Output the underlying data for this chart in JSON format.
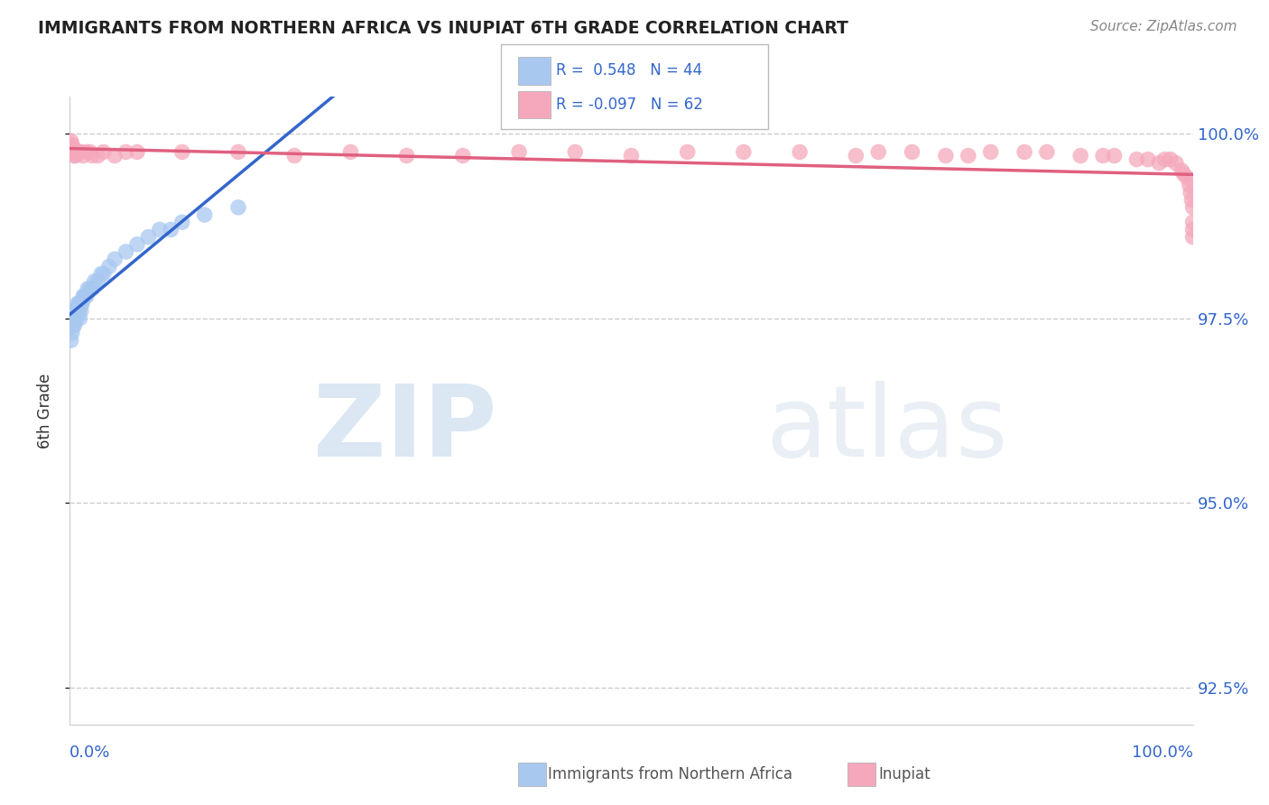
{
  "title": "IMMIGRANTS FROM NORTHERN AFRICA VS INUPIAT 6TH GRADE CORRELATION CHART",
  "source": "Source: ZipAtlas.com",
  "ylabel": "6th Grade",
  "legend_r_blue": "R =  0.548",
  "legend_n_blue": "N = 44",
  "legend_r_pink": "R = -0.097",
  "legend_n_pink": "N = 62",
  "blue_color": "#A8C8F0",
  "pink_color": "#F5A8BC",
  "blue_line_color": "#3366CC",
  "pink_line_color": "#E06080",
  "watermark_zip": "ZIP",
  "watermark_atlas": "atlas",
  "blue_scatter_x": [
    0.001,
    0.001,
    0.002,
    0.002,
    0.002,
    0.003,
    0.003,
    0.003,
    0.004,
    0.004,
    0.005,
    0.005,
    0.006,
    0.006,
    0.007,
    0.007,
    0.008,
    0.008,
    0.009,
    0.009,
    0.01,
    0.01,
    0.011,
    0.012,
    0.013,
    0.014,
    0.015,
    0.016,
    0.018,
    0.02,
    0.022,
    0.025,
    0.028,
    0.03,
    0.035,
    0.04,
    0.05,
    0.06,
    0.07,
    0.08,
    0.09,
    0.1,
    0.12,
    0.15
  ],
  "blue_scatter_y": [
    0.975,
    0.972,
    0.975,
    0.973,
    0.974,
    0.974,
    0.975,
    0.976,
    0.974,
    0.975,
    0.975,
    0.976,
    0.975,
    0.976,
    0.976,
    0.977,
    0.976,
    0.977,
    0.977,
    0.975,
    0.977,
    0.976,
    0.977,
    0.978,
    0.978,
    0.978,
    0.978,
    0.979,
    0.979,
    0.979,
    0.98,
    0.98,
    0.981,
    0.981,
    0.982,
    0.983,
    0.984,
    0.985,
    0.986,
    0.987,
    0.987,
    0.988,
    0.989,
    0.99
  ],
  "pink_scatter_x": [
    0.001,
    0.001,
    0.001,
    0.002,
    0.002,
    0.003,
    0.003,
    0.004,
    0.004,
    0.005,
    0.006,
    0.007,
    0.008,
    0.01,
    0.012,
    0.015,
    0.018,
    0.02,
    0.025,
    0.03,
    0.04,
    0.05,
    0.06,
    0.1,
    0.15,
    0.2,
    0.25,
    0.3,
    0.35,
    0.4,
    0.45,
    0.5,
    0.55,
    0.6,
    0.65,
    0.7,
    0.72,
    0.75,
    0.78,
    0.8,
    0.82,
    0.85,
    0.87,
    0.9,
    0.92,
    0.93,
    0.95,
    0.96,
    0.97,
    0.975,
    0.98,
    0.985,
    0.99,
    0.992,
    0.995,
    0.997,
    0.998,
    0.999,
    1.0,
    1.0,
    1.0,
    1.0
  ],
  "pink_scatter_y": [
    0.999,
    0.9985,
    0.998,
    0.9985,
    0.9975,
    0.998,
    0.9975,
    0.9975,
    0.997,
    0.997,
    0.9975,
    0.9975,
    0.9975,
    0.9975,
    0.997,
    0.9975,
    0.9975,
    0.997,
    0.997,
    0.9975,
    0.997,
    0.9975,
    0.9975,
    0.9975,
    0.9975,
    0.997,
    0.9975,
    0.997,
    0.997,
    0.9975,
    0.9975,
    0.997,
    0.9975,
    0.9975,
    0.9975,
    0.997,
    0.9975,
    0.9975,
    0.997,
    0.997,
    0.9975,
    0.9975,
    0.9975,
    0.997,
    0.997,
    0.997,
    0.9965,
    0.9965,
    0.996,
    0.9965,
    0.9965,
    0.996,
    0.995,
    0.9945,
    0.994,
    0.993,
    0.992,
    0.991,
    0.99,
    0.988,
    0.987,
    0.986
  ],
  "xlim": [
    0.0,
    1.0
  ],
  "ylim": [
    0.92,
    1.005
  ],
  "yticks": [
    0.925,
    0.95,
    0.975,
    1.0
  ],
  "ytick_labels": [
    "92.5%",
    "95.0%",
    "97.5%",
    "100.0%"
  ],
  "xtick_values": [
    0.0,
    0.35,
    1.0
  ],
  "grid_color": "#CCCCCC",
  "background_color": "#FFFFFF",
  "title_color": "#222222",
  "source_color": "#888888",
  "tick_color": "#3366CC"
}
